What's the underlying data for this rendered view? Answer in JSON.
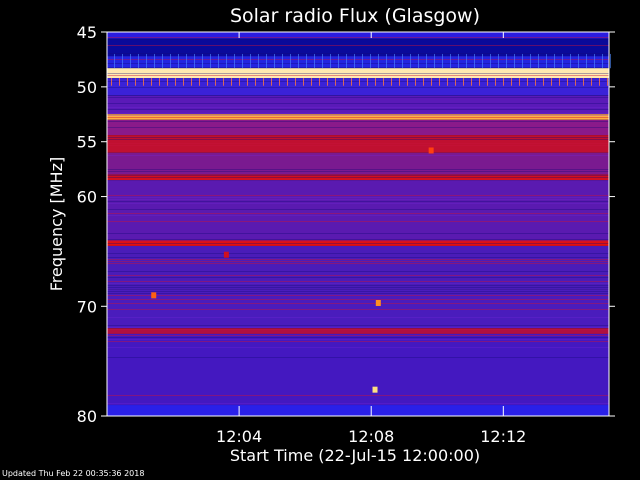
{
  "chart_data": {
    "type": "heatmap",
    "title": "Solar radio Flux (Glasgow)",
    "xlabel": "Start Time (22-Jul-15 12:00:00)",
    "ylabel": "Frequency [MHz]",
    "x_unit": "minutes after 12:00",
    "xlim": [
      0,
      15.2
    ],
    "ylim": [
      45,
      80
    ],
    "y_inverted": true,
    "x_ticks": [
      {
        "value": 4,
        "label": "12:04"
      },
      {
        "value": 8,
        "label": "12:08"
      },
      {
        "value": 12,
        "label": "12:12"
      }
    ],
    "y_ticks": [
      {
        "value": 45,
        "label": "45"
      },
      {
        "value": 50,
        "label": "50"
      },
      {
        "value": 55,
        "label": "55"
      },
      {
        "value": 60,
        "label": "60"
      },
      {
        "value": 70,
        "label": "70"
      },
      {
        "value": 80,
        "label": "80"
      }
    ],
    "bands": [
      {
        "y0": 45.0,
        "y1": 45.6,
        "color": "#2a1ce0"
      },
      {
        "y0": 45.6,
        "y1": 47.2,
        "color": "#0a0a9a"
      },
      {
        "y0": 47.2,
        "y1": 48.3,
        "color": "#2424e0"
      },
      {
        "y0": 48.3,
        "y1": 49.2,
        "color": "#ffe8b0"
      },
      {
        "y0": 49.2,
        "y1": 50.8,
        "color": "#3a22d8"
      },
      {
        "y0": 50.8,
        "y1": 52.5,
        "color": "#5a1ab8"
      },
      {
        "y0": 52.5,
        "y1": 53.0,
        "color": "#ffb040"
      },
      {
        "y0": 53.0,
        "y1": 54.4,
        "color": "#8a1a8a"
      },
      {
        "y0": 54.4,
        "y1": 56.0,
        "color": "#c01030"
      },
      {
        "y0": 56.0,
        "y1": 58.0,
        "color": "#7a1a90"
      },
      {
        "y0": 58.0,
        "y1": 58.5,
        "color": "#d01020"
      },
      {
        "y0": 58.5,
        "y1": 64.0,
        "color": "#5a1ab0"
      },
      {
        "y0": 64.0,
        "y1": 64.5,
        "color": "#e01010"
      },
      {
        "y0": 64.5,
        "y1": 68.5,
        "color": "#4a1cb8"
      },
      {
        "y0": 68.5,
        "y1": 72.0,
        "color": "#4a1cbc"
      },
      {
        "y0": 72.0,
        "y1": 72.5,
        "color": "#b01040"
      },
      {
        "y0": 72.5,
        "y1": 79.0,
        "color": "#4418c0"
      },
      {
        "y0": 79.0,
        "y1": 80.0,
        "color": "#2a20e8"
      }
    ],
    "bursts": [
      {
        "x": 8.1,
        "y": 77.6,
        "color": "#ffe080"
      },
      {
        "x": 8.2,
        "y": 69.7,
        "color": "#ff9020"
      },
      {
        "x": 1.4,
        "y": 69.0,
        "color": "#ff6010"
      },
      {
        "x": 3.6,
        "y": 65.3,
        "color": "#d01020"
      },
      {
        "x": 9.8,
        "y": 55.8,
        "color": "#ff4010"
      }
    ],
    "colors": {
      "background": "#000000",
      "text": "#ffffff"
    }
  },
  "footer": {
    "text": "Updated Thu Feb 22 00:35:36 2018"
  }
}
